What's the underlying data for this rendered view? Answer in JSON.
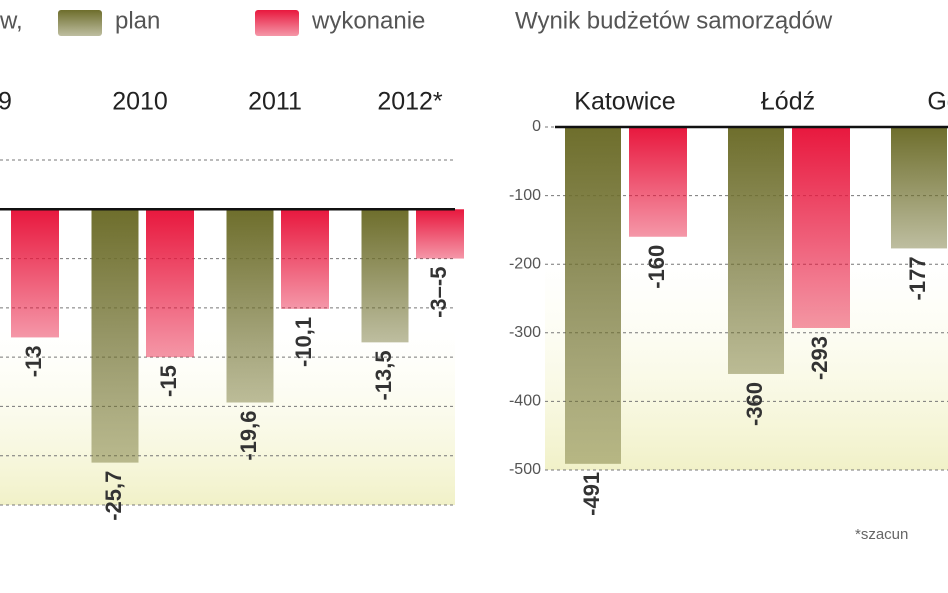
{
  "header": {
    "legend_lead": "w,",
    "right_title": "Wynik budżetów samorządów",
    "footnote": "*szacun"
  },
  "chart_data": [
    {
      "type": "bar",
      "categories": [
        "9",
        "2010",
        "2011",
        "2012*"
      ],
      "series": [
        {
          "name": "plan",
          "color": "#6e6e2c",
          "values": [
            null,
            -25.7,
            -19.6,
            -13.5
          ],
          "value_labels": [
            null,
            "-25,7",
            "-19,6",
            "-13,5"
          ]
        },
        {
          "name": "wykonanie",
          "color": "#e8183e",
          "values": [
            -13,
            -15,
            -10.1,
            -5
          ],
          "value_labels": [
            "-13",
            "-15",
            "-10,1",
            "-3–-5"
          ]
        }
      ],
      "ylim": [
        -30,
        5
      ],
      "yticks": [
        5,
        0,
        -5,
        -10,
        -15,
        -20,
        -25,
        -30
      ],
      "grid": true,
      "tick_labels": false
    },
    {
      "type": "bar",
      "categories": [
        "Katowice",
        "Łódź",
        "Gda"
      ],
      "series": [
        {
          "color": "#6e6e2c",
          "values": [
            -491,
            -360,
            -177
          ]
        },
        {
          "color": "#e8183e",
          "values": [
            -160,
            -293,
            null
          ]
        }
      ],
      "ylim": [
        -500,
        0
      ],
      "yticks": [
        0,
        -100,
        -200,
        -300,
        -400,
        -500
      ],
      "grid": true,
      "tick_labels": true
    }
  ]
}
